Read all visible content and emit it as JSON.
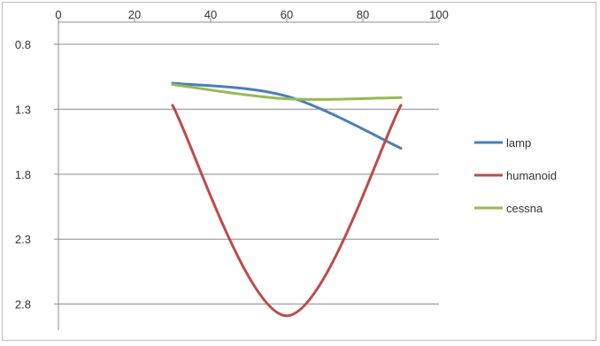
{
  "chart_data": {
    "type": "line",
    "title": "",
    "xlabel": "",
    "ylabel": "",
    "x_axis_position": "top",
    "y_axis_inverted": true,
    "xlim": [
      0,
      100
    ],
    "ylim": [
      0.8,
      3.0
    ],
    "x_ticks": [
      0,
      20,
      40,
      60,
      80,
      100
    ],
    "y_ticks": [
      0.8,
      1.3,
      1.8,
      2.3,
      2.8
    ],
    "x_tick_labels": [
      "0",
      "20",
      "40",
      "60",
      "80",
      "100"
    ],
    "y_tick_labels": [
      "0.8",
      "1.3",
      "1.8",
      "2.3",
      "2.8"
    ],
    "grid": "horizontal",
    "legend_position": "right",
    "series": [
      {
        "name": "lamp",
        "color": "#4a7ebb",
        "x": [
          30,
          60,
          90
        ],
        "y": [
          1.1,
          1.2,
          1.6
        ]
      },
      {
        "name": "humanoid",
        "color": "#be4b48",
        "x": [
          30,
          60,
          90
        ],
        "y": [
          1.27,
          2.89,
          1.27
        ]
      },
      {
        "name": "cessna",
        "color": "#98b954",
        "x": [
          30,
          60,
          90
        ],
        "y": [
          1.11,
          1.22,
          1.21
        ]
      }
    ]
  }
}
